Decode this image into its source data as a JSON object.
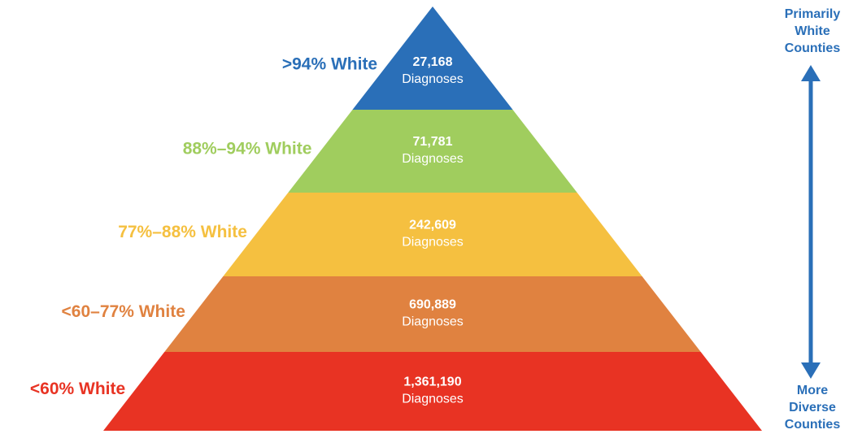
{
  "levels": [
    {
      "label": ">94% White",
      "count": "27,168",
      "unit": "Diagnoses",
      "color": "#2a6fb8"
    },
    {
      "label": "88%–94% White",
      "count": "71,781",
      "unit": "Diagnoses",
      "color": "#a0cd5e"
    },
    {
      "label": "77%–88% White",
      "count": "242,609",
      "unit": "Diagnoses",
      "color": "#f5c040"
    },
    {
      "label": "<60–77% White",
      "count": "690,889",
      "unit": "Diagnoses",
      "color": "#e08240"
    },
    {
      "label": "<60% White",
      "count": "1,361,190",
      "unit": "Diagnoses",
      "color": "#e83323"
    }
  ],
  "top_label": [
    "Primarily",
    "White",
    "Counties"
  ],
  "bottom_label": [
    "More",
    "Diverse",
    "Counties"
  ]
}
